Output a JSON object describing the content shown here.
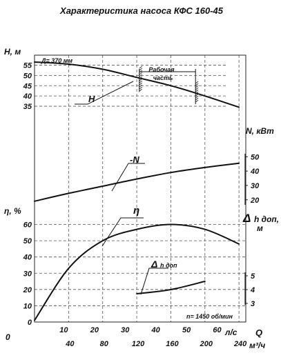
{
  "chart_data": {
    "type": "line",
    "title": "Характеристика насоса КФС 160-45",
    "x_axis": {
      "upper_label": "Q",
      "upper_unit": "л/с",
      "upper_ticks": [
        "10",
        "20",
        "30",
        "40",
        "50",
        "60"
      ],
      "lower_unit": "м³/ч",
      "lower_ticks": [
        "40",
        "80",
        "120",
        "160",
        "200",
        "240"
      ],
      "origin_label": "0",
      "range_m3h": [
        0,
        248
      ]
    },
    "axes": {
      "H": {
        "label": "H, м",
        "ticks": [
          "55",
          "50",
          "45",
          "40",
          "35"
        ],
        "range": [
          32,
          57.5
        ]
      },
      "N": {
        "label": "N, кВт",
        "ticks": [
          "50",
          "40",
          "30",
          "20"
        ],
        "range": [
          17,
          54
        ]
      },
      "eta": {
        "label": "η, %",
        "ticks": [
          "60",
          "50",
          "40",
          "30",
          "20",
          "10",
          "0"
        ],
        "range": [
          0,
          67
        ]
      },
      "dh": {
        "label_main": "Δ",
        "label_sub": "h доп,",
        "label_unit": "м",
        "ticks": [
          "5",
          "4",
          "3"
        ],
        "range": [
          2.6,
          5.4
        ]
      }
    },
    "series": [
      {
        "name": "H",
        "axis": "H",
        "x": [
          0,
          40,
          80,
          120,
          160,
          200,
          240
        ],
        "y": [
          56.5,
          55.5,
          53,
          49,
          45,
          40,
          34.5
        ]
      },
      {
        "name": "-N",
        "axis": "N",
        "x": [
          0,
          40,
          80,
          120,
          160,
          200,
          240
        ],
        "y": [
          19,
          24.5,
          29.5,
          34.5,
          39,
          42.5,
          45.5
        ]
      },
      {
        "name": "η",
        "axis": "eta",
        "x": [
          0,
          40,
          80,
          120,
          160,
          200,
          240
        ],
        "y": [
          1,
          33,
          50,
          57,
          60,
          57,
          48
        ]
      },
      {
        "name": "Δ h доп",
        "axis": "dh",
        "x": [
          120,
          160,
          200
        ],
        "y": [
          3.7,
          4.0,
          4.6
        ]
      }
    ],
    "annotations": {
      "impeller": "Д= 370 мм",
      "working_zone_line1": "Рабочая",
      "working_zone_line2": "часть",
      "working_zone_m3h": [
        123,
        189
      ],
      "speed": "n= 1450 об/мин"
    },
    "grid": true
  }
}
